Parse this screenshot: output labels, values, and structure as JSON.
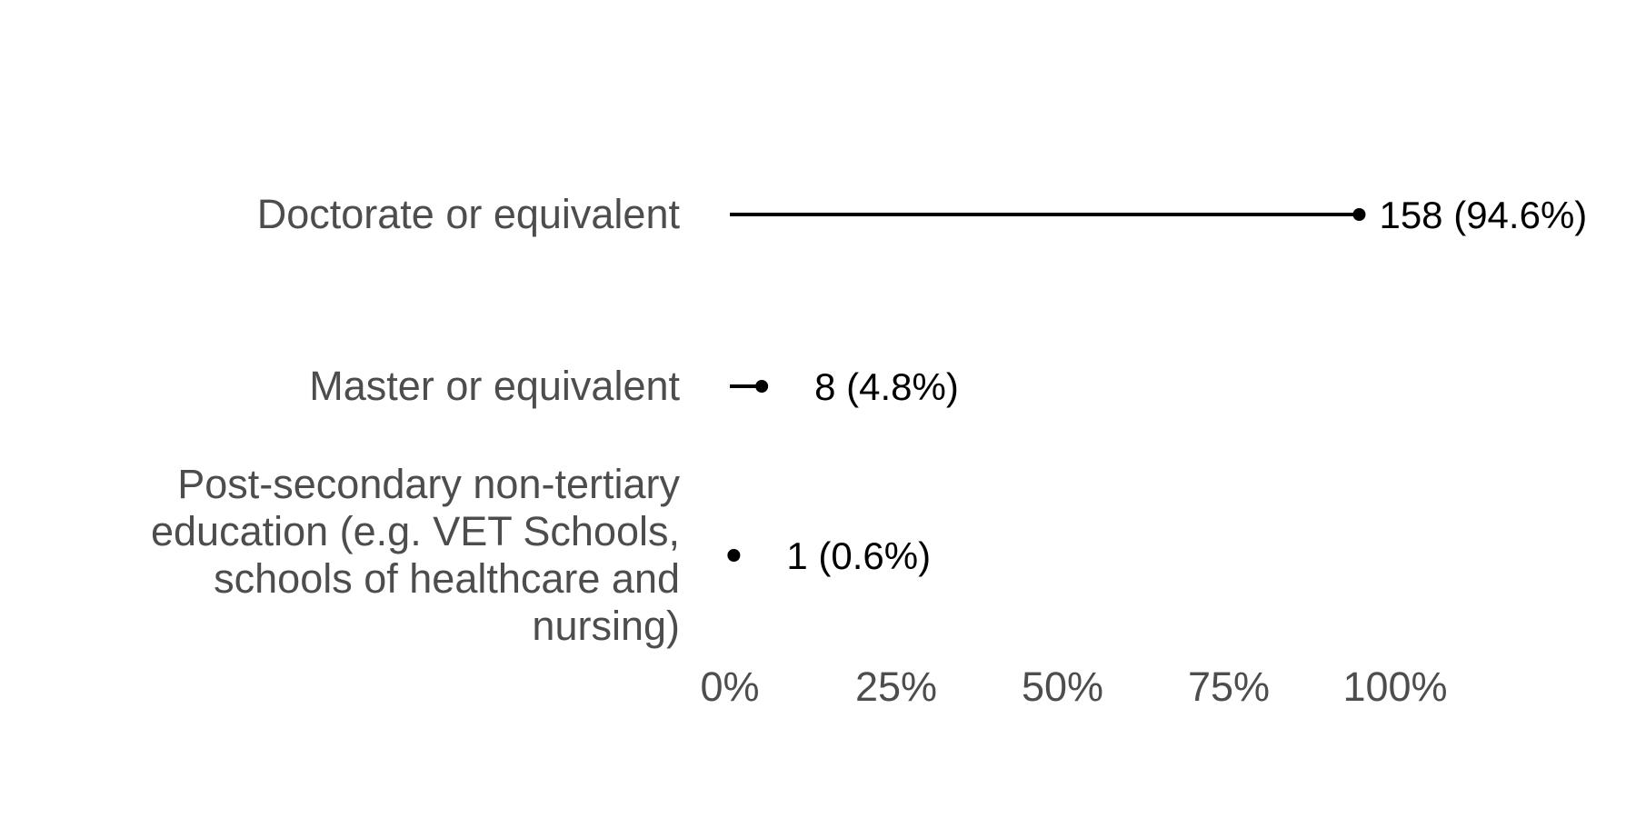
{
  "chart_data": {
    "type": "lollipop",
    "categories": [
      "Doctorate or equivalent",
      "Master or equivalent",
      "Post-secondary non-tertiary education (e.g. VET Schools, schools of healthcare and nursing)"
    ],
    "category_lines": [
      [
        "Doctorate or equivalent"
      ],
      [
        "Master or equivalent"
      ],
      [
        "Post-secondary non-tertiary",
        "education (e.g. VET Schools,",
        "schools of healthcare and",
        "nursing)"
      ]
    ],
    "counts": [
      158,
      8,
      1
    ],
    "percents": [
      94.6,
      4.8,
      0.6
    ],
    "data_labels": [
      "158 (94.6%)",
      "8 (4.8%)",
      "1 (0.6%)"
    ],
    "x_ticks": [
      0,
      25,
      50,
      75,
      100
    ],
    "x_tick_labels": [
      "0%",
      "25%",
      "50%",
      "75%",
      "100%"
    ],
    "xlim": [
      0,
      100
    ],
    "title": "",
    "xlabel": "",
    "ylabel": "",
    "grid": false,
    "legend": "none",
    "colors": {
      "stem": "#000000",
      "dot": "#000000",
      "axis_text": "#4d4d4d",
      "label_text": "#000000"
    }
  }
}
